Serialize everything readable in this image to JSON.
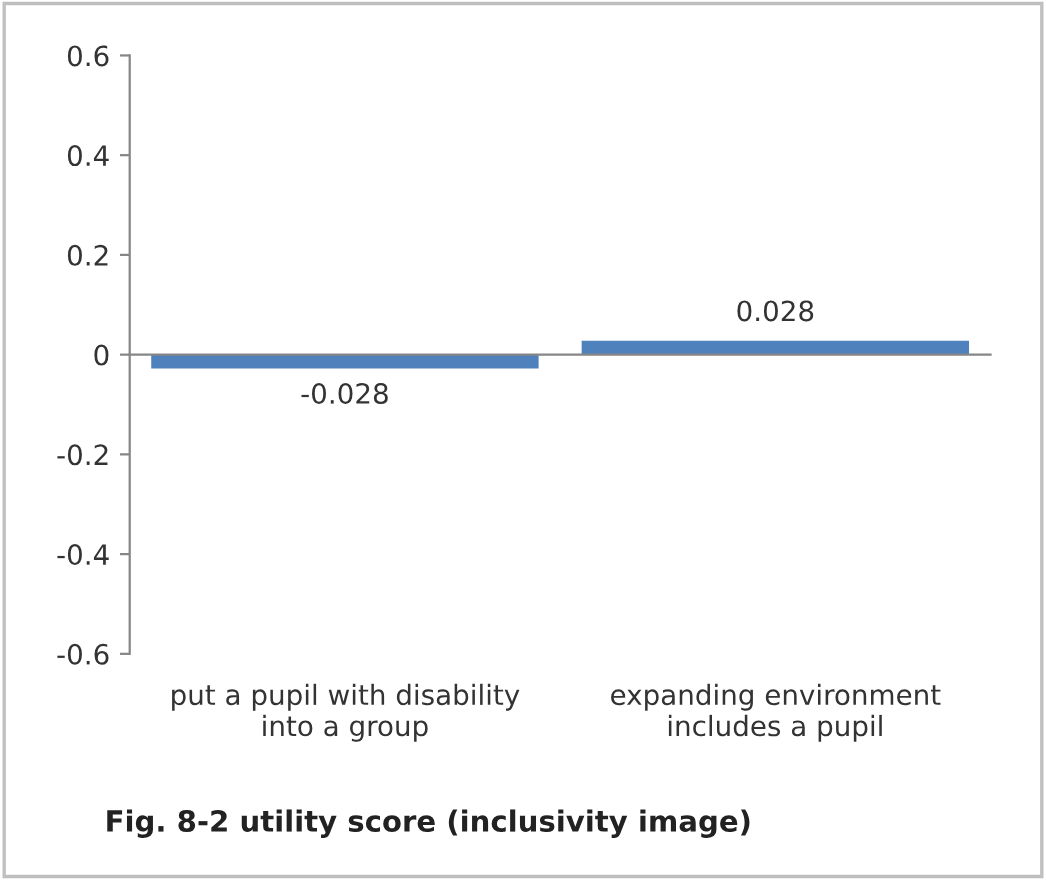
{
  "chart_data": {
    "type": "bar",
    "title": "Fig. 8-2 utility score (inclusivity image)",
    "categories": [
      "put a pupil with disability\ninto a group",
      "expanding environment\nincludes a pupil"
    ],
    "values": [
      -0.028,
      0.028
    ],
    "color": "#4f81bd",
    "ylim": [
      -0.6,
      0.6
    ],
    "yticks": [
      -0.6,
      -0.4,
      -0.2,
      0,
      0.2,
      0.4,
      0.6
    ],
    "data_labels": true
  }
}
